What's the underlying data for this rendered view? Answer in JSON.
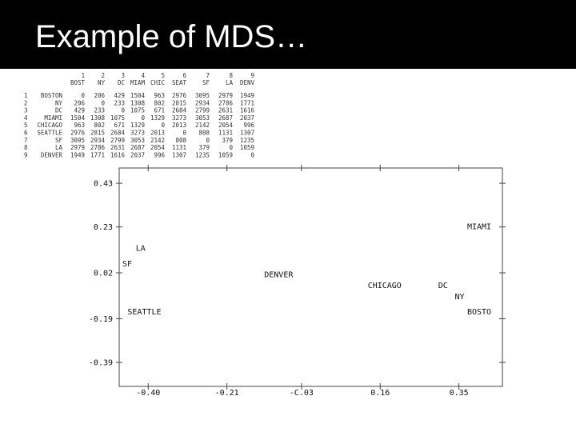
{
  "slide": {
    "title": "Example of MDS…"
  },
  "table": {
    "header_numbers": [
      "1",
      "2",
      "3",
      "4",
      "5",
      "6",
      "7",
      "8",
      "9"
    ],
    "header_codes": [
      "BOST",
      "NY",
      "DC",
      "MIAM",
      "CHIC",
      "SEAT",
      "SF",
      "LA",
      "DENV"
    ],
    "rows": [
      {
        "n": "1",
        "city": "BOSTON",
        "values": [
          "0",
          "206",
          "429",
          "1504",
          "963",
          "2976",
          "3095",
          "2979",
          "1949"
        ]
      },
      {
        "n": "2",
        "city": "NY",
        "values": [
          "206",
          "0",
          "233",
          "1308",
          "802",
          "2815",
          "2934",
          "2786",
          "1771"
        ]
      },
      {
        "n": "3",
        "city": "DC",
        "values": [
          "429",
          "233",
          "0",
          "1075",
          "671",
          "2684",
          "2799",
          "2631",
          "1616"
        ]
      },
      {
        "n": "4",
        "city": "MIAMI",
        "values": [
          "1504",
          "1308",
          "1075",
          "0",
          "1329",
          "3273",
          "3053",
          "2687",
          "2037"
        ]
      },
      {
        "n": "5",
        "city": "CHICAGO",
        "values": [
          "963",
          "802",
          "671",
          "1329",
          "0",
          "2013",
          "2142",
          "2054",
          "996"
        ]
      },
      {
        "n": "6",
        "city": "SEATTLE",
        "values": [
          "2976",
          "2815",
          "2684",
          "3273",
          "2013",
          "0",
          "808",
          "1131",
          "1307"
        ]
      },
      {
        "n": "7",
        "city": "SF",
        "values": [
          "3095",
          "2934",
          "2799",
          "3053",
          "2142",
          "808",
          "0",
          "379",
          "1235"
        ]
      },
      {
        "n": "8",
        "city": "LA",
        "values": [
          "2979",
          "2786",
          "2631",
          "2687",
          "2054",
          "1131",
          "379",
          "0",
          "1059"
        ]
      },
      {
        "n": "9",
        "city": "DENVER",
        "values": [
          "1949",
          "1771",
          "1616",
          "2037",
          "996",
          "1307",
          "1235",
          "1059",
          "0"
        ]
      }
    ]
  },
  "chart_data": {
    "type": "scatter",
    "x_ticks": [
      "-0.40",
      "-0.21",
      "-C.03",
      "0.16",
      "0.35"
    ],
    "x_tick_values": [
      -0.4,
      -0.21,
      -0.03,
      0.16,
      0.35
    ],
    "y_ticks": [
      "0.43",
      "0.23",
      "0.02",
      "-0.19",
      "-0.39"
    ],
    "y_tick_values": [
      0.43,
      0.23,
      0.02,
      -0.19,
      -0.39
    ],
    "xlim": [
      -0.47,
      0.455
    ],
    "ylim": [
      -0.5,
      0.5
    ],
    "points": [
      {
        "label": "MIAMI",
        "x": 0.37,
        "y": 0.22
      },
      {
        "label": "LA",
        "x": -0.43,
        "y": 0.12
      },
      {
        "label": "SF",
        "x": -0.49,
        "y": 0.05
      },
      {
        "label": "DENVER",
        "x": -0.12,
        "y": 0.0
      },
      {
        "label": "CHICAGO",
        "x": 0.13,
        "y": -0.05
      },
      {
        "label": "DC",
        "x": 0.3,
        "y": -0.05
      },
      {
        "label": "NY",
        "x": 0.34,
        "y": -0.1
      },
      {
        "label": "BOSTO",
        "x": 0.37,
        "y": -0.17
      },
      {
        "label": "SEATTLE",
        "x": -0.45,
        "y": -0.17
      }
    ]
  }
}
